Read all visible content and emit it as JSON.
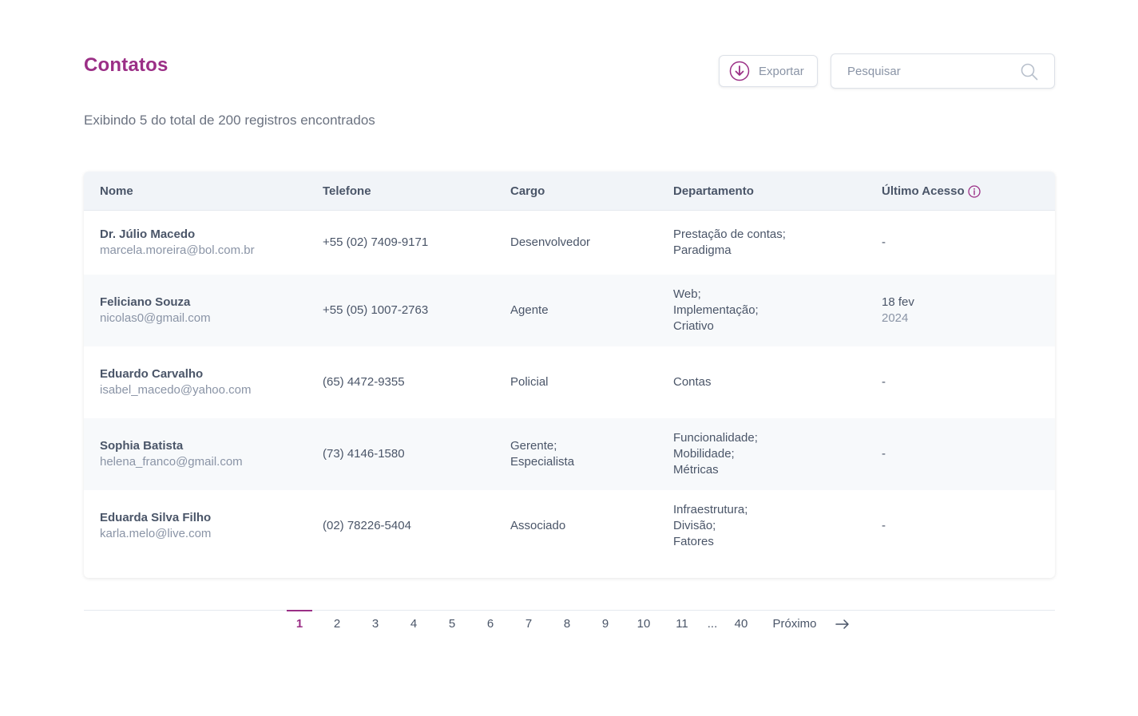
{
  "header": {
    "title": "Contatos",
    "export_label": "Exportar",
    "search_placeholder": "Pesquisar",
    "summary": "Exibindo 5 do total de 200 registros encontrados"
  },
  "table": {
    "columns": [
      "Nome",
      "Telefone",
      "Cargo",
      "Departamento",
      "Último Acesso"
    ],
    "rows": [
      {
        "name": "Dr. Júlio Macedo",
        "email": "marcela.moreira@bol.com.br",
        "phone": "+55 (02) 7409-9171",
        "role": [
          "Desenvolvedor"
        ],
        "dept": [
          "Prestação de contas;",
          "Paradigma"
        ],
        "access_day": "-",
        "access_year": ""
      },
      {
        "name": "Feliciano Souza",
        "email": "nicolas0@gmail.com",
        "phone": "+55 (05) 1007-2763",
        "role": [
          "Agente"
        ],
        "dept": [
          "Web;",
          "Implementação;",
          "Criativo"
        ],
        "access_day": "18 fev",
        "access_year": "2024"
      },
      {
        "name": "Eduardo Carvalho",
        "email": "isabel_macedo@yahoo.com",
        "phone": "(65) 4472-9355",
        "role": [
          "Policial"
        ],
        "dept": [
          "Contas"
        ],
        "access_day": "-",
        "access_year": ""
      },
      {
        "name": "Sophia Batista",
        "email": "helena_franco@gmail.com",
        "phone": "(73) 4146-1580",
        "role": [
          "Gerente;",
          "Especialista"
        ],
        "dept": [
          "Funcionalidade;",
          "Mobilidade;",
          "Métricas"
        ],
        "access_day": "-",
        "access_year": ""
      },
      {
        "name": "Eduarda Silva Filho",
        "email": "karla.melo@live.com",
        "phone": "(02) 78226-5404",
        "role": [
          "Associado"
        ],
        "dept": [
          "Infraestrutura;",
          "Divisão;",
          "Fatores"
        ],
        "access_day": "-",
        "access_year": ""
      }
    ]
  },
  "pagination": {
    "pages": [
      "1",
      "2",
      "3",
      "4",
      "5",
      "6",
      "7",
      "8",
      "9",
      "10",
      "11",
      "...",
      "40"
    ],
    "current": "1",
    "next_label": "Próximo"
  },
  "icons": {
    "export": "arrow-down-circle-icon",
    "search": "search-icon",
    "info": "info-icon",
    "next": "arrow-right-icon"
  },
  "colors": {
    "accent": "#9b2f86",
    "header_bg": "#f1f4f8",
    "alt_row_bg": "#f7f9fb"
  }
}
